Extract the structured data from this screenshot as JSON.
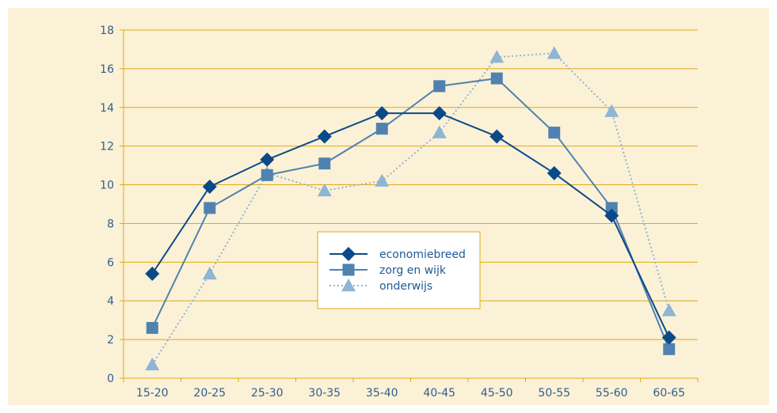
{
  "colors": {
    "background": "#fbf1d6",
    "gridline": "#e3a912",
    "axis": "#e3a912",
    "text": "#2f5f8f",
    "series_economiebreed": "#0b4a89",
    "series_zorg": "#4f82b0",
    "series_onderwijs": "#8fb4d4"
  },
  "chart_data": {
    "type": "line",
    "title": "",
    "xlabel": "",
    "ylabel": "",
    "categories": [
      "15-20",
      "20-25",
      "25-30",
      "30-35",
      "35-40",
      "40-45",
      "45-50",
      "50-55",
      "55-60",
      "60-65"
    ],
    "ylim": [
      0,
      18
    ],
    "yticks": [
      0,
      2,
      4,
      6,
      8,
      10,
      12,
      14,
      16,
      18
    ],
    "grid": true,
    "legend_position": "center",
    "series": [
      {
        "name": "economiebreed",
        "marker": "diamond",
        "line": "solid",
        "color": "#0b4a89",
        "values": [
          5.4,
          9.9,
          11.3,
          12.5,
          13.7,
          13.7,
          12.5,
          10.6,
          8.4,
          2.1
        ]
      },
      {
        "name": "zorg en wijk",
        "marker": "square",
        "line": "solid",
        "color": "#4f82b0",
        "values": [
          2.6,
          8.8,
          10.5,
          11.1,
          12.9,
          15.1,
          15.5,
          12.7,
          8.8,
          1.5
        ]
      },
      {
        "name": "onderwijs",
        "marker": "triangle",
        "line": "dotted",
        "color": "#8fb4d4",
        "values": [
          0.7,
          5.4,
          10.6,
          9.7,
          10.2,
          12.7,
          16.6,
          16.8,
          13.8,
          3.5
        ]
      }
    ]
  }
}
